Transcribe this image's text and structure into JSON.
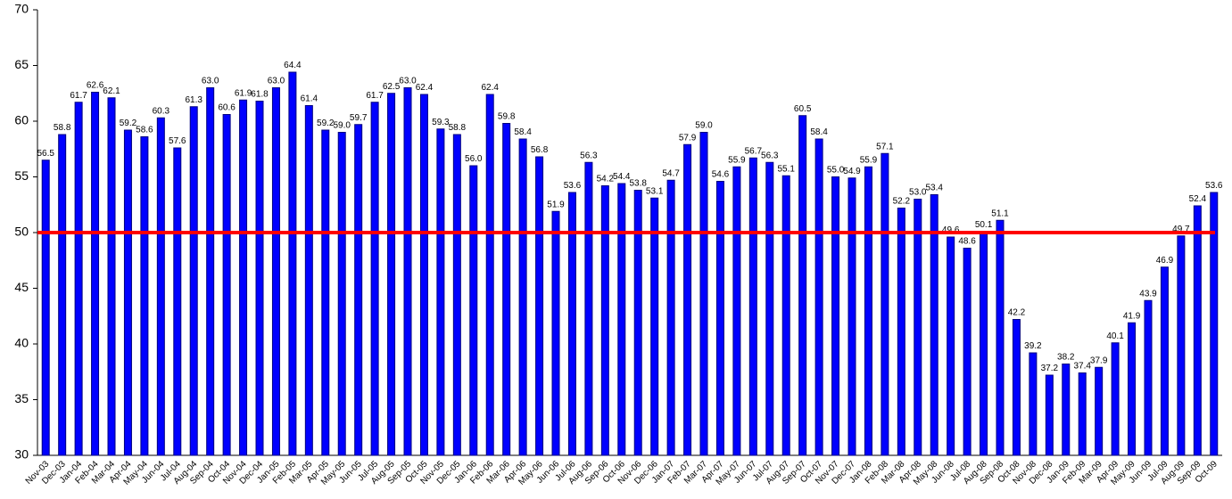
{
  "chart_data": {
    "type": "bar",
    "categories": [
      "Nov-03",
      "Dec-03",
      "Jan-04",
      "Feb-04",
      "Mar-04",
      "Apr-04",
      "May-04",
      "Jun-04",
      "Jul-04",
      "Aug-04",
      "Sep-04",
      "Oct-04",
      "Nov-04",
      "Dec-04",
      "Jan-05",
      "Feb-05",
      "Mar-05",
      "Apr-05",
      "May-05",
      "Jun-05",
      "Jul-05",
      "Aug-05",
      "Sep-05",
      "Oct-05",
      "Nov-05",
      "Dec-05",
      "Jan-06",
      "Feb-06",
      "Mar-06",
      "Apr-06",
      "May-06",
      "Jun-06",
      "Jul-06",
      "Aug-06",
      "Sep-06",
      "Oct-06",
      "Nov-06",
      "Dec-06",
      "Jan-07",
      "Feb-07",
      "Mar-07",
      "Apr-07",
      "May-07",
      "Jun-07",
      "Jul-07",
      "Aug-07",
      "Sep-07",
      "Oct-07",
      "Nov-07",
      "Dec-07",
      "Jan-08",
      "Feb-08",
      "Mar-08",
      "Apr-08",
      "May-08",
      "Jun-08",
      "Jul-08",
      "Aug-08",
      "Sep-08",
      "Oct-08",
      "Nov-08",
      "Dec-08",
      "Jan-09",
      "Feb-09",
      "Mar-09",
      "Apr-09",
      "May-09",
      "Jun-09",
      "Jul-09",
      "Aug-09",
      "Sep-09",
      "Oct-09"
    ],
    "values": [
      56.5,
      58.8,
      61.7,
      62.6,
      62.1,
      59.2,
      58.6,
      60.3,
      57.6,
      61.3,
      63.0,
      60.6,
      61.9,
      61.8,
      63.0,
      64.4,
      61.4,
      59.2,
      59.0,
      59.7,
      61.7,
      62.5,
      63.0,
      62.4,
      59.3,
      58.8,
      56.0,
      62.4,
      59.8,
      58.4,
      56.8,
      51.9,
      53.6,
      56.3,
      54.2,
      54.4,
      53.8,
      53.1,
      54.7,
      57.9,
      59.0,
      54.6,
      55.9,
      56.7,
      56.3,
      55.1,
      60.5,
      58.4,
      55.0,
      54.9,
      55.9,
      57.1,
      52.2,
      53.0,
      53.4,
      49.6,
      48.6,
      50.1,
      51.1,
      42.2,
      39.2,
      37.2,
      38.2,
      37.4,
      37.9,
      40.1,
      41.9,
      43.9,
      46.9,
      49.7,
      52.4,
      53.6
    ],
    "value_labels": [
      "56.5",
      "58.8",
      "61.7",
      "62.6",
      "62.1",
      "59.2",
      "58.6",
      "60.3",
      "57.6",
      "61.3",
      "63.0",
      "60.6",
      "61.9",
      "61.8",
      "63.0",
      "64.4",
      "61.4",
      "59.2",
      "59.0",
      "59.7",
      "61.7",
      "62.5",
      "63.0",
      "62.4",
      "59.3",
      "58.8",
      "56.0",
      "62.4",
      "59.8",
      "58.4",
      "56.8",
      "51.9",
      "53.6",
      "56.3",
      "54.2",
      "54.4",
      "53.8",
      "53.1",
      "54.7",
      "57.9",
      "59.0",
      "54.6",
      "55.9",
      "56.7",
      "56.3",
      "55.1",
      "60.5",
      "58.4",
      "55.0",
      "54.9",
      "55.9",
      "57.1",
      "52.2",
      "53.0",
      "53.4",
      "49.6",
      "48.6",
      "50.1",
      "51.1",
      "42.2",
      "39.2",
      "37.2",
      "38.2",
      "37.4",
      "37.9",
      "40.1",
      "41.9",
      "43.9",
      "46.9",
      "49.7",
      "52.4",
      "53.6"
    ],
    "color": "#0000ff",
    "ylim": [
      30,
      70
    ],
    "yticks": [
      30,
      35,
      40,
      45,
      50,
      55,
      60,
      65,
      70
    ],
    "grid": false,
    "reference_line": {
      "value": 50,
      "color": "#ff0000"
    }
  }
}
